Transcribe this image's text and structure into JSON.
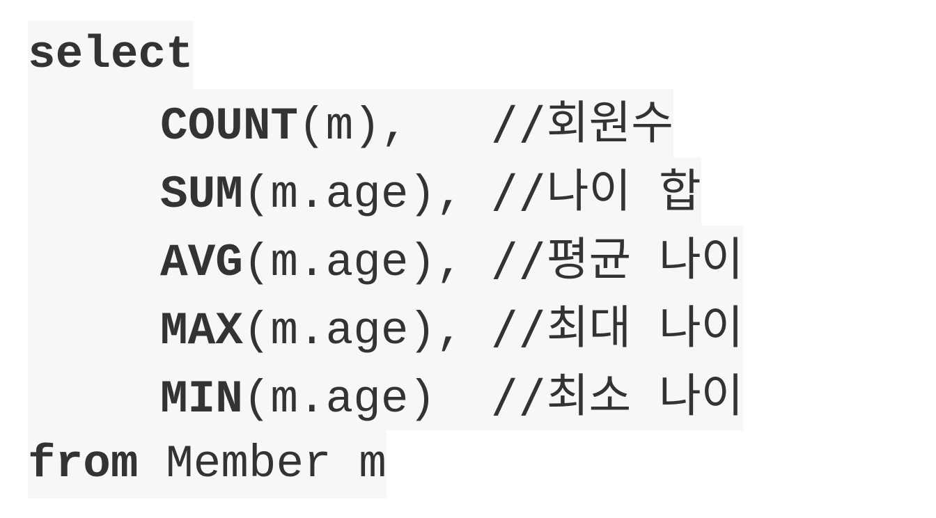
{
  "code": {
    "line1": {
      "keyword": "select"
    },
    "line2": {
      "func": "COUNT",
      "args": "(m),   ",
      "comment": "//회원수"
    },
    "line3": {
      "func": "SUM",
      "args": "(m.age), ",
      "comment": "//나이 합"
    },
    "line4": {
      "func": "AVG",
      "args": "(m.age), ",
      "comment": "//평균 나이"
    },
    "line5": {
      "func": "MAX",
      "args": "(m.age), ",
      "comment": "//최대 나이"
    },
    "line6": {
      "func": "MIN",
      "args": "(m.age)  ",
      "comment": "//최소 나이"
    },
    "line7": {
      "keyword": "from",
      "rest": " Member m"
    }
  },
  "colors": {
    "text": "#333333",
    "code_background": "#f7f7f7",
    "page_background": "#ffffff"
  }
}
